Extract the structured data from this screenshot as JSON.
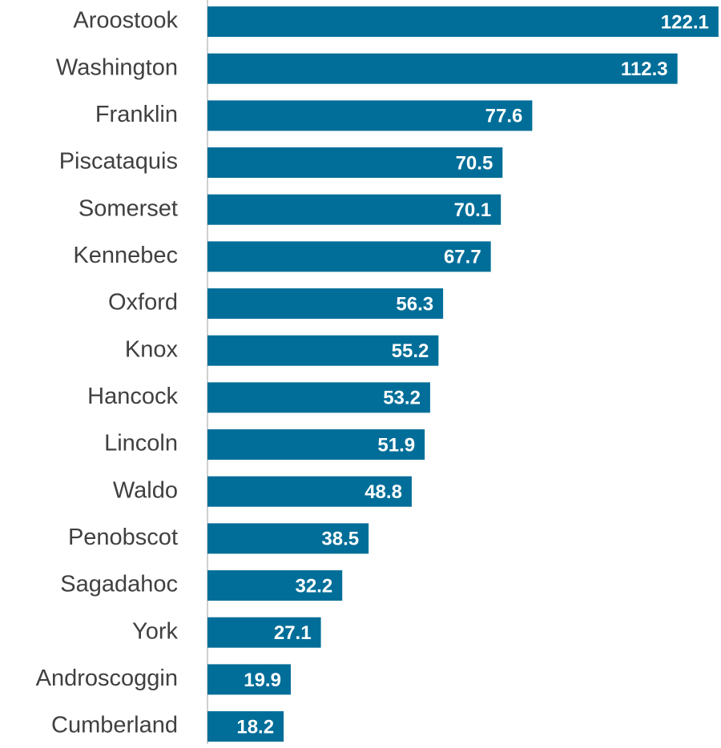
{
  "chart_data": {
    "type": "bar",
    "orientation": "horizontal",
    "categories": [
      "Aroostook",
      "Washington",
      "Franklin",
      "Piscataquis",
      "Somerset",
      "Kennebec",
      "Oxford",
      "Knox",
      "Hancock",
      "Lincoln",
      "Waldo",
      "Penobscot",
      "Sagadahoc",
      "York",
      "Androscoggin",
      "Cumberland"
    ],
    "values": [
      122.1,
      112.3,
      77.6,
      70.5,
      70.1,
      67.7,
      56.3,
      55.2,
      53.2,
      51.9,
      48.8,
      38.5,
      32.2,
      27.1,
      19.9,
      18.2
    ],
    "color": "#006e98",
    "xlim": [
      0,
      122.7
    ]
  }
}
